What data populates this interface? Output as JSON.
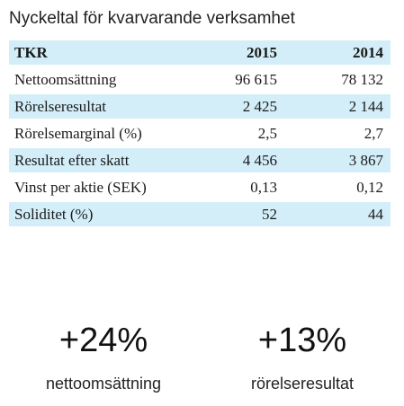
{
  "title": "Nyckeltal för kvarvarande verksamhet",
  "table": {
    "header": {
      "label": "TKR",
      "col1": "2015",
      "col2": "2014"
    },
    "rows": [
      {
        "label": "Nettoomsättning",
        "v2015": "96 615",
        "v2014": "78 132"
      },
      {
        "label": "Rörelseresultat",
        "v2015": "2 425",
        "v2014": "2 144"
      },
      {
        "label": "Rörelsemarginal (%)",
        "v2015": "2,5",
        "v2014": "2,7"
      },
      {
        "label": "Resultat efter skatt",
        "v2015": "4 456",
        "v2014": "3 867"
      },
      {
        "label": "Vinst per aktie (SEK)",
        "v2015": "0,13",
        "v2014": "0,12"
      },
      {
        "label": "Soliditet (%)",
        "v2015": "52",
        "v2014": "44"
      }
    ]
  },
  "highlights": [
    {
      "value": "+24%",
      "label": "nettoomsättning"
    },
    {
      "value": "+13%",
      "label": "rörelseresultat"
    }
  ],
  "colors": {
    "row_shade": "#d3eef8"
  }
}
